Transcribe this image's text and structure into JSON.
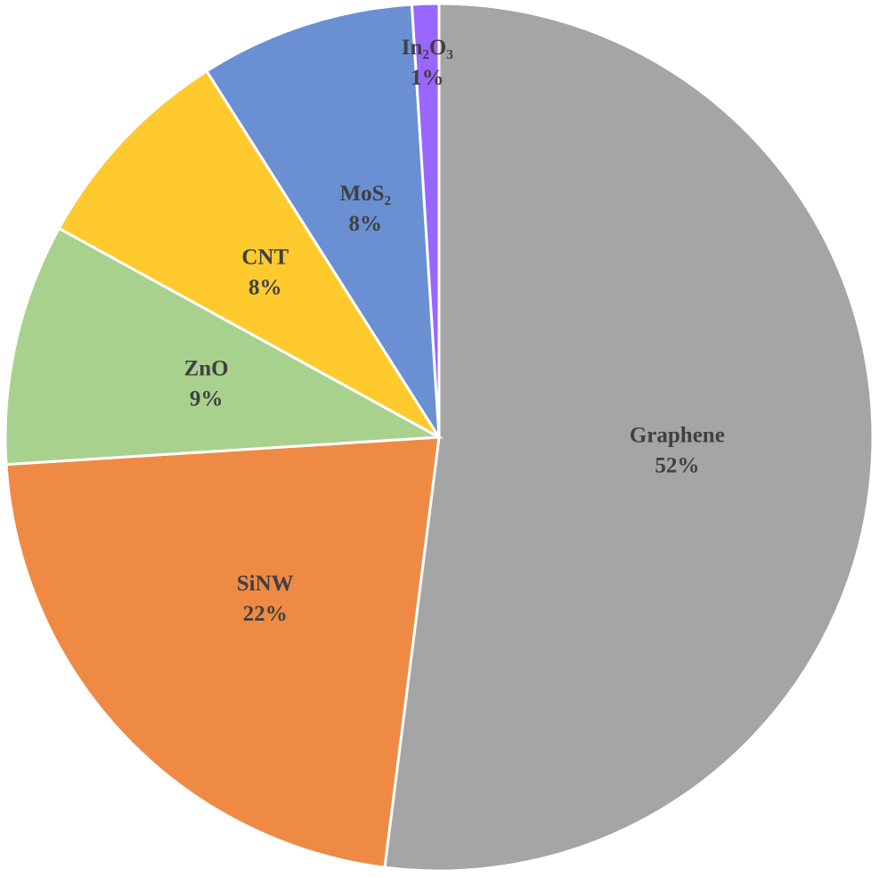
{
  "chart_data": {
    "type": "pie",
    "categories": [
      "Graphene",
      "SiNW",
      "ZnO",
      "CNT",
      "MoS₂",
      "In₂O₃"
    ],
    "values": [
      52,
      22,
      9,
      8,
      8,
      1
    ],
    "value_labels": [
      "52%",
      "22%",
      "9%",
      "8%",
      "8%",
      "1%"
    ],
    "colors": [
      "#a5a5a5",
      "#ef8a45",
      "#a9d18e",
      "#ffca2e",
      "#6a8fd2",
      "#9966ff"
    ]
  }
}
